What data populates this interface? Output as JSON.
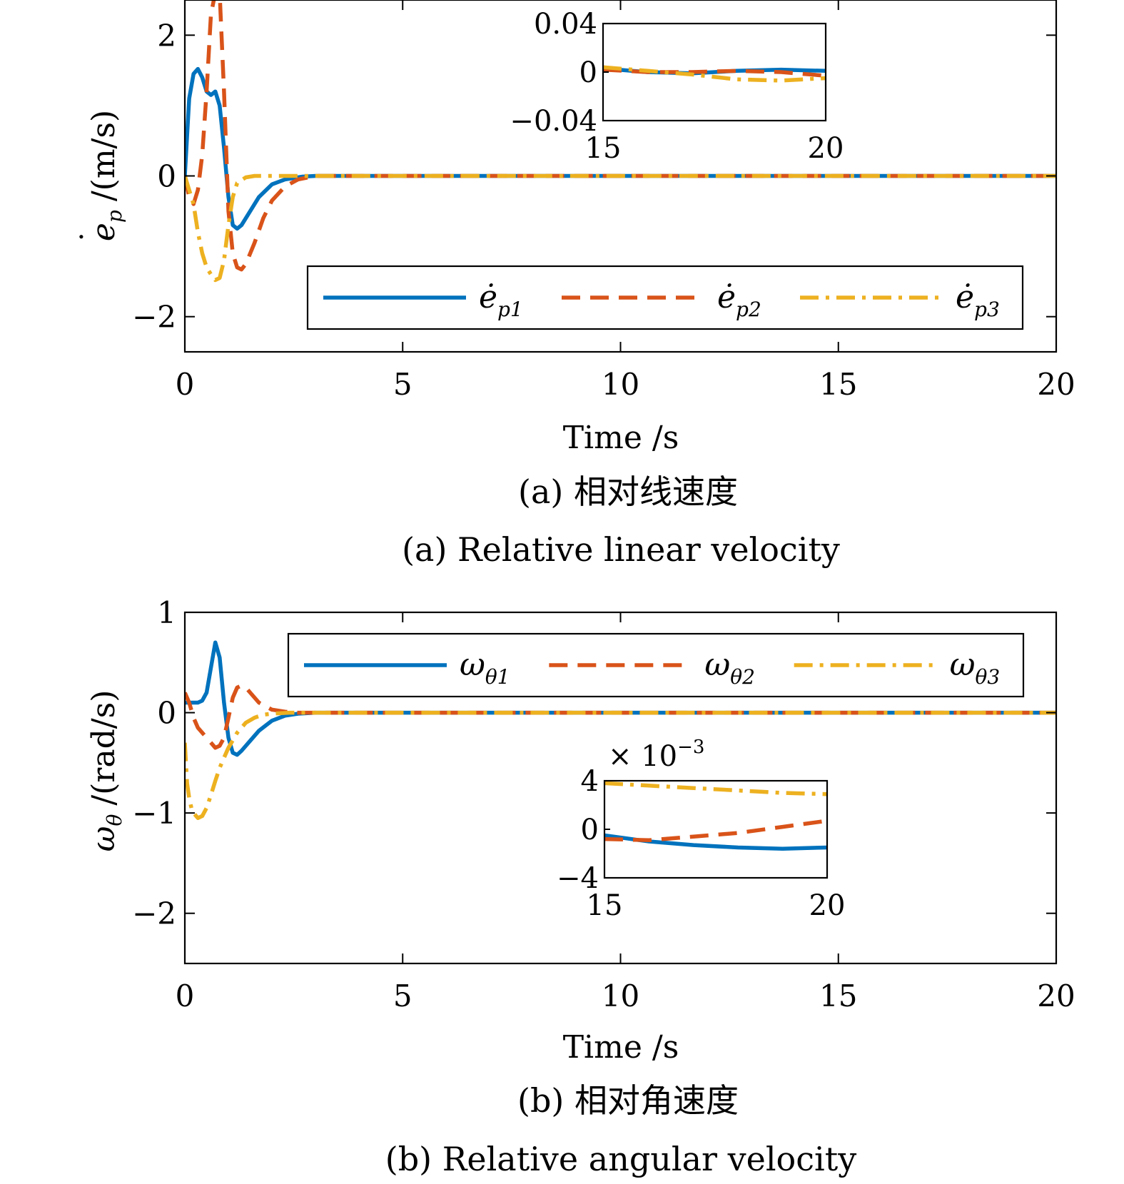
{
  "colors": {
    "s1": "#0072BD",
    "s2": "#D95319",
    "s3": "#EDB120"
  },
  "chart_data": [
    {
      "type": "line",
      "xlabel": "Time /s",
      "ylabel_symbol": "e",
      "ylabel_sub": "p",
      "ylabel_unit": "/(m/s)",
      "xlim": [
        0,
        20
      ],
      "ylim": [
        -2.5,
        2.5
      ],
      "xticks": [
        "0",
        "5",
        "10",
        "15",
        "20"
      ],
      "yticks": [
        "−2",
        "0",
        "2"
      ],
      "caption_cn": "(a) 相对线速度",
      "caption_en": "(a) Relative linear velocity",
      "legend_placement": "bottom-right",
      "series": [
        {
          "name": "ė_p1",
          "label_main": "ė",
          "label_sub": "p1",
          "color": "#0072BD",
          "dash": "solid",
          "x": [
            0,
            0.1,
            0.2,
            0.3,
            0.4,
            0.5,
            0.6,
            0.7,
            0.8,
            0.9,
            1.0,
            1.1,
            1.2,
            1.3,
            1.5,
            1.7,
            2.0,
            2.3,
            2.7,
            3.0,
            4,
            20
          ],
          "y": [
            0,
            1.1,
            1.45,
            1.52,
            1.4,
            1.2,
            1.15,
            1.2,
            1.0,
            0.4,
            -0.3,
            -0.7,
            -0.75,
            -0.7,
            -0.5,
            -0.3,
            -0.12,
            -0.05,
            -0.01,
            0,
            0,
            0
          ]
        },
        {
          "name": "ė_p2",
          "label_main": "ė",
          "label_sub": "p2",
          "color": "#D95319",
          "dash": "dashed",
          "x": [
            0,
            0.1,
            0.2,
            0.3,
            0.4,
            0.5,
            0.6,
            0.7,
            0.8,
            0.9,
            1.0,
            1.1,
            1.2,
            1.3,
            1.4,
            1.6,
            1.8,
            2.0,
            2.3,
            2.6,
            3.0,
            4,
            20
          ],
          "y": [
            0,
            -0.3,
            -0.4,
            -0.2,
            0.3,
            1.2,
            2.3,
            2.6,
            2.6,
            1.2,
            -0.5,
            -1.1,
            -1.3,
            -1.33,
            -1.25,
            -0.95,
            -0.6,
            -0.35,
            -0.15,
            -0.05,
            0,
            0,
            0
          ]
        },
        {
          "name": "ė_p3",
          "label_main": "ė",
          "label_sub": "p3",
          "color": "#EDB120",
          "dash": "dashdot",
          "x": [
            0,
            0.1,
            0.2,
            0.3,
            0.4,
            0.5,
            0.6,
            0.7,
            0.8,
            0.9,
            1.0,
            1.1,
            1.2,
            1.4,
            1.6,
            2.0,
            2.5,
            3.0,
            4,
            20
          ],
          "y": [
            0,
            -0.2,
            -0.4,
            -0.8,
            -1.1,
            -1.3,
            -1.4,
            -1.48,
            -1.45,
            -1.2,
            -0.7,
            -0.3,
            -0.1,
            -0.02,
            0,
            0,
            0,
            0,
            0,
            0
          ]
        }
      ],
      "inset": {
        "xlim": [
          15,
          20
        ],
        "ylim": [
          -0.04,
          0.04
        ],
        "xticks": [
          "15",
          "20"
        ],
        "yticks": [
          "0.04",
          "0",
          "−0.04"
        ],
        "series": [
          {
            "x": [
              15,
              16,
              17,
              18,
              19,
              20
            ],
            "y": [
              0.003,
              0.0,
              -0.001,
              0.001,
              0.002,
              0.001
            ]
          },
          {
            "x": [
              15,
              16,
              17,
              18,
              19,
              20
            ],
            "y": [
              0.002,
              0.0,
              0.0,
              0.001,
              0.0,
              -0.003
            ]
          },
          {
            "x": [
              15,
              16,
              17,
              18,
              19,
              20
            ],
            "y": [
              0.004,
              0.001,
              -0.002,
              -0.006,
              -0.007,
              -0.005
            ]
          }
        ]
      }
    },
    {
      "type": "line",
      "xlabel": "Time /s",
      "ylabel_symbol": "ω",
      "ylabel_sub": "θ",
      "ylabel_unit": "/(rad/s)",
      "xlim": [
        0,
        20
      ],
      "ylim": [
        -2.5,
        1
      ],
      "xticks": [
        "0",
        "5",
        "10",
        "15",
        "20"
      ],
      "yticks": [
        "1",
        "0",
        "−1",
        "−2"
      ],
      "caption_cn": "(b) 相对角速度",
      "caption_en": "(b) Relative angular velocity",
      "legend_placement": "top-right",
      "series": [
        {
          "name": "ω_θ1",
          "label_main": "ω",
          "label_sub": "θ1",
          "color": "#0072BD",
          "dash": "solid",
          "x": [
            0,
            0.1,
            0.2,
            0.3,
            0.4,
            0.5,
            0.6,
            0.7,
            0.8,
            0.9,
            1.0,
            1.1,
            1.2,
            1.3,
            1.5,
            1.7,
            2.0,
            2.3,
            2.6,
            3.0,
            4,
            20
          ],
          "y": [
            0.1,
            0.1,
            0.1,
            0.1,
            0.12,
            0.2,
            0.45,
            0.7,
            0.55,
            0.1,
            -0.25,
            -0.4,
            -0.42,
            -0.38,
            -0.28,
            -0.18,
            -0.08,
            -0.03,
            -0.01,
            0,
            0,
            0
          ]
        },
        {
          "name": "ω_θ2",
          "label_main": "ω",
          "label_sub": "θ2",
          "color": "#D95319",
          "dash": "dashed",
          "x": [
            0,
            0.1,
            0.2,
            0.3,
            0.4,
            0.5,
            0.6,
            0.7,
            0.8,
            0.9,
            1.0,
            1.1,
            1.2,
            1.3,
            1.4,
            1.5,
            1.7,
            2.0,
            2.3,
            2.6,
            3.0,
            4,
            20
          ],
          "y": [
            0.2,
            0.1,
            -0.05,
            -0.15,
            -0.2,
            -0.25,
            -0.3,
            -0.35,
            -0.33,
            -0.25,
            -0.05,
            0.15,
            0.25,
            0.27,
            0.25,
            0.2,
            0.1,
            0.03,
            0.01,
            0,
            0,
            0,
            0
          ]
        },
        {
          "name": "ω_θ3",
          "label_main": "ω",
          "label_sub": "θ3",
          "color": "#EDB120",
          "dash": "dashdot",
          "x": [
            0,
            0.05,
            0.1,
            0.15,
            0.2,
            0.3,
            0.4,
            0.5,
            0.6,
            0.7,
            0.8,
            0.9,
            1.0,
            1.2,
            1.4,
            1.6,
            1.8,
            2.0,
            2.4,
            3.0,
            4,
            20
          ],
          "y": [
            -0.3,
            -0.7,
            -0.85,
            -0.95,
            -1.0,
            -1.05,
            -1.03,
            -0.95,
            -0.82,
            -0.68,
            -0.55,
            -0.45,
            -0.35,
            -0.2,
            -0.1,
            -0.05,
            -0.02,
            -0.01,
            0,
            0,
            0,
            0
          ]
        }
      ],
      "inset": {
        "xlim": [
          15,
          20
        ],
        "ylim": [
          -4,
          4
        ],
        "exponent_label": "× 10",
        "exponent_power": "−3",
        "xticks": [
          "15",
          "20"
        ],
        "yticks": [
          "4",
          "0",
          "−4"
        ],
        "series": [
          {
            "x": [
              15,
              16,
              17,
              18,
              19,
              20
            ],
            "y": [
              -0.5,
              -1.0,
              -1.3,
              -1.5,
              -1.6,
              -1.5
            ]
          },
          {
            "x": [
              15,
              16,
              17,
              18,
              19,
              20
            ],
            "y": [
              -0.8,
              -0.9,
              -0.6,
              -0.3,
              0.2,
              0.7
            ]
          },
          {
            "x": [
              15,
              16,
              17,
              18,
              19,
              20
            ],
            "y": [
              3.8,
              3.6,
              3.4,
              3.2,
              3.0,
              2.9
            ]
          }
        ]
      }
    }
  ]
}
